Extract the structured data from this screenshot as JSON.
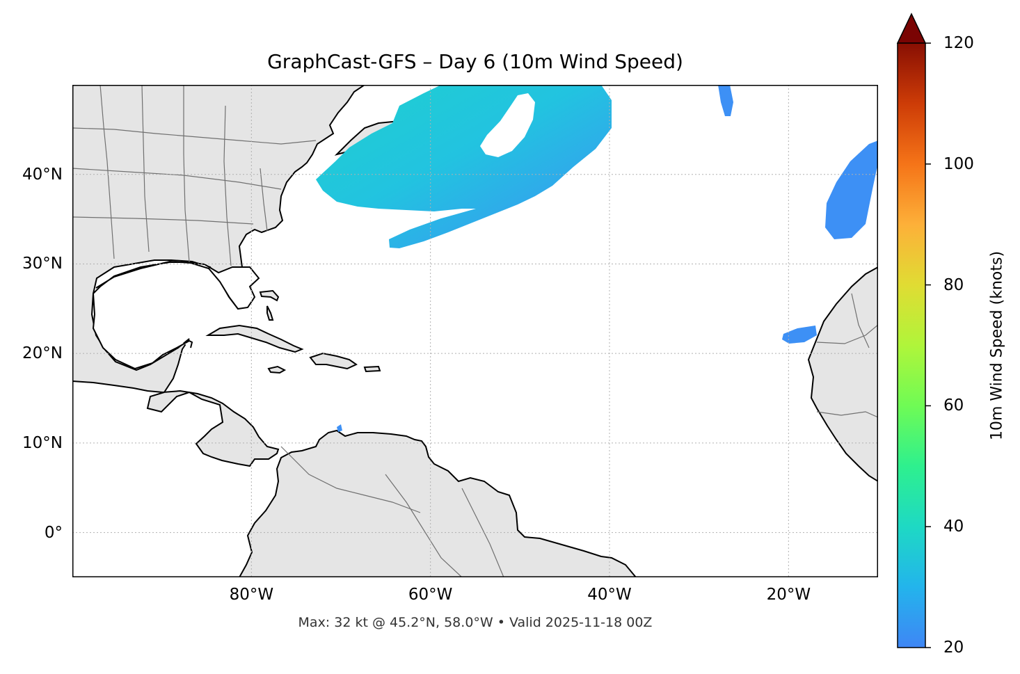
{
  "title": "GraphCast-GFS – Day 6 (10m Wind Speed)",
  "footer": "Max: 32 kt @ 45.2°N, 58.0°W • Valid 2025-11-18 00Z",
  "map": {
    "projection": "PlateCarree",
    "lon_range": [
      -100,
      -10
    ],
    "lat_range": [
      -5,
      50
    ],
    "gridlines": "dotted",
    "land_color": "#e5e5e5",
    "ocean_color": "#ffffff",
    "lat_ticks": [
      {
        "value": 40,
        "label": "40°N"
      },
      {
        "value": 30,
        "label": "30°N"
      },
      {
        "value": 20,
        "label": "20°N"
      },
      {
        "value": 10,
        "label": "10°N"
      },
      {
        "value": 0,
        "label": "0°"
      }
    ],
    "lon_ticks": [
      {
        "value": -80,
        "label": "80°W"
      },
      {
        "value": -60,
        "label": "60°W"
      },
      {
        "value": -40,
        "label": "40°W"
      },
      {
        "value": -20,
        "label": "20°W"
      }
    ],
    "max_wind": {
      "value_kt": 32,
      "lat": 45.2,
      "lon": -58.0
    },
    "valid_time": "2025-11-18 00Z"
  },
  "colorbar": {
    "label": "10m Wind Speed (knots)",
    "min": 20,
    "max": 120,
    "extend": "max",
    "colormap": "turbo",
    "ticks": [
      {
        "value": 20,
        "label": "20"
      },
      {
        "value": 40,
        "label": "40"
      },
      {
        "value": 60,
        "label": "60"
      },
      {
        "value": 80,
        "label": "80"
      },
      {
        "value": 100,
        "label": "100"
      },
      {
        "value": 120,
        "label": "120"
      }
    ]
  }
}
